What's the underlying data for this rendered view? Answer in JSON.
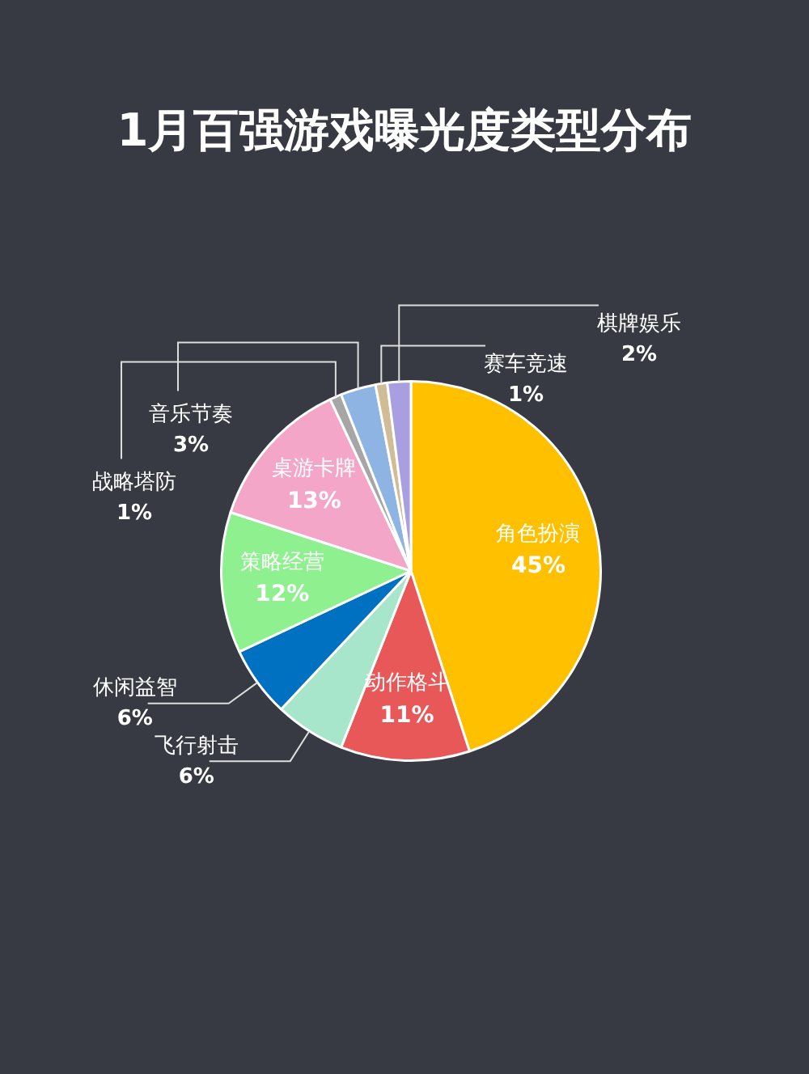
{
  "chart_data": {
    "type": "pie",
    "title": "1月百强游戏曝光度类型分布",
    "categories": [
      "角色扮演",
      "动作格斗",
      "飞行射击",
      "休闲益智",
      "策略经营",
      "桌游卡牌",
      "战略塔防",
      "音乐节奏",
      "赛车竞速",
      "棋牌娱乐"
    ],
    "values": [
      45,
      11,
      6,
      6,
      12,
      13,
      1,
      3,
      1,
      2
    ],
    "colors": [
      "#ffc000",
      "#e85858",
      "#a8e6cc",
      "#0070c0",
      "#8ef08e",
      "#f4a6c8",
      "#a6a6a6",
      "#8db4e2",
      "#d0bc96",
      "#a89ee0"
    ],
    "value_labels": [
      "45%",
      "11%",
      "6%",
      "6%",
      "12%",
      "13%",
      "1%",
      "3%",
      "1%",
      "2%"
    ],
    "legend": false
  }
}
